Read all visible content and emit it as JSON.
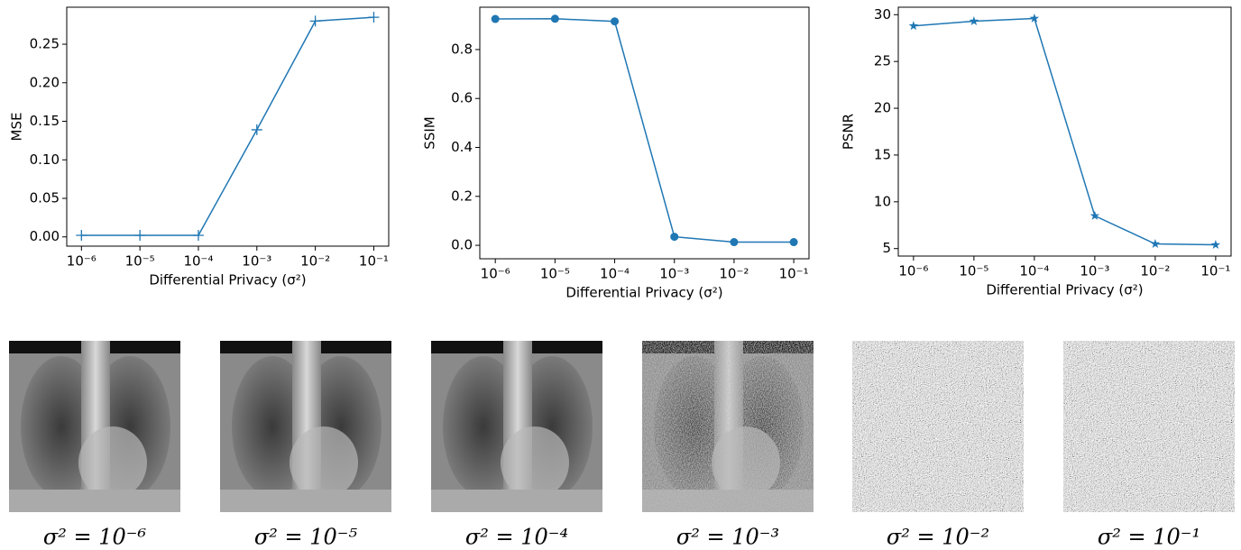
{
  "chart_data": [
    {
      "type": "line",
      "ylabel": "MSE",
      "xlabel": "Differential Privacy (σ²)",
      "xscale": "log",
      "marker": "+",
      "color": "#1f77b4",
      "grid": false,
      "x": [
        1e-06,
        1e-05,
        0.0001,
        0.001,
        0.01,
        0.1
      ],
      "values": [
        0.002,
        0.002,
        0.002,
        0.139,
        0.28,
        0.285
      ],
      "xlim": [
        5.6e-07,
        0.18
      ],
      "xticks": [
        {
          "value": 1e-06,
          "label": "10⁻⁶"
        },
        {
          "value": 1e-05,
          "label": "10⁻⁵"
        },
        {
          "value": 0.0001,
          "label": "10⁻⁴"
        },
        {
          "value": 0.001,
          "label": "10⁻³"
        },
        {
          "value": 0.01,
          "label": "10⁻²"
        },
        {
          "value": 0.1,
          "label": "10⁻¹"
        }
      ],
      "ylim": [
        -0.012,
        0.298
      ],
      "yticks": [
        {
          "value": 0,
          "label": "0.00"
        },
        0.05,
        {
          "value": 0.1,
          "label": "0.10"
        },
        0.15,
        {
          "value": 0.2,
          "label": "0.20"
        },
        0.25
      ]
    },
    {
      "type": "line",
      "ylabel": "SSIM",
      "xlabel": "Differential Privacy (σ²)",
      "xscale": "log",
      "marker": "o",
      "color": "#1f77b4",
      "grid": false,
      "x": [
        1e-06,
        1e-05,
        0.0001,
        0.001,
        0.01,
        0.1
      ],
      "values": [
        0.925,
        0.926,
        0.915,
        0.035,
        0.013,
        0.013
      ],
      "xlim": [
        5.5e-07,
        0.18
      ],
      "xticks": [
        {
          "value": 1e-06,
          "label": "10⁻⁶"
        },
        {
          "value": 1e-05,
          "label": "10⁻⁵"
        },
        {
          "value": 0.0001,
          "label": "10⁻⁴"
        },
        {
          "value": 0.001,
          "label": "10⁻³"
        },
        {
          "value": 0.01,
          "label": "10⁻²"
        },
        {
          "value": 0.1,
          "label": "10⁻¹"
        }
      ],
      "ylim": [
        -0.055,
        0.973
      ],
      "yticks": [
        {
          "value": 0,
          "label": "0.0"
        },
        0.2,
        0.4,
        0.6,
        0.8
      ]
    },
    {
      "type": "line",
      "ylabel": "PSNR",
      "xlabel": "Differential Privacy (σ²)",
      "xscale": "log",
      "marker": "*",
      "color": "#1f77b4",
      "grid": false,
      "x": [
        1e-06,
        1e-05,
        0.0001,
        0.001,
        0.01,
        0.1
      ],
      "values": [
        28.8,
        29.3,
        29.6,
        8.5,
        5.5,
        5.4
      ],
      "xlim": [
        5.6e-07,
        0.18
      ],
      "xticks": [
        {
          "value": 1e-06,
          "label": "10⁻⁶"
        },
        {
          "value": 1e-05,
          "label": "10⁻⁵"
        },
        {
          "value": 0.0001,
          "label": "10⁻⁴"
        },
        {
          "value": 0.001,
          "label": "10⁻³"
        },
        {
          "value": 0.01,
          "label": "10⁻²"
        },
        {
          "value": 0.1,
          "label": "10⁻¹"
        }
      ],
      "ylim": [
        4.2,
        30.8
      ],
      "yticks": [
        5,
        10,
        15,
        20,
        25,
        30
      ]
    }
  ],
  "panels": [
    {
      "caption": "σ² = 10⁻⁶"
    },
    {
      "caption": "σ² = 10⁻⁵"
    },
    {
      "caption": "σ² = 10⁻⁴"
    },
    {
      "caption": "σ² = 10⁻³"
    },
    {
      "caption": "σ² = 10⁻²"
    },
    {
      "caption": "σ² = 10⁻¹"
    }
  ]
}
